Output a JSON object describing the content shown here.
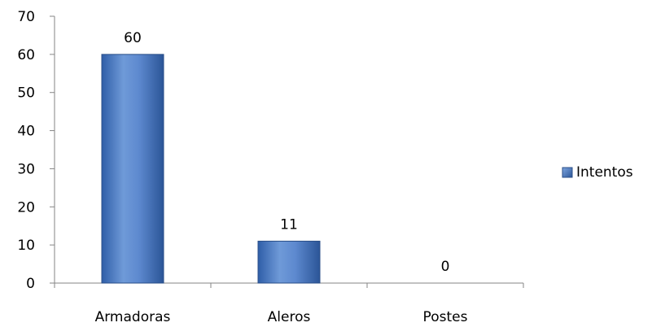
{
  "chart_data": {
    "type": "bar",
    "categories": [
      "Armadoras",
      "Aleros",
      "Postes"
    ],
    "series": [
      {
        "name": "Intentos",
        "values": [
          60,
          11,
          0
        ]
      }
    ],
    "data_labels": [
      "60",
      "11",
      "0"
    ],
    "ylim": [
      0,
      70
    ],
    "yticks": [
      0,
      10,
      20,
      30,
      40,
      50,
      60,
      70
    ],
    "ytick_labels": [
      "0",
      "10",
      "20",
      "30",
      "40",
      "50",
      "60",
      "70"
    ],
    "grid": false,
    "legend": {
      "position": "right",
      "entries": [
        "Intentos"
      ]
    },
    "colors": {
      "bar_light": "#7ea6e0",
      "bar_mid": "#4a78c2",
      "bar_dark": "#2b5597",
      "bar_stroke": "#2b4f88",
      "axis": "#868686"
    }
  }
}
